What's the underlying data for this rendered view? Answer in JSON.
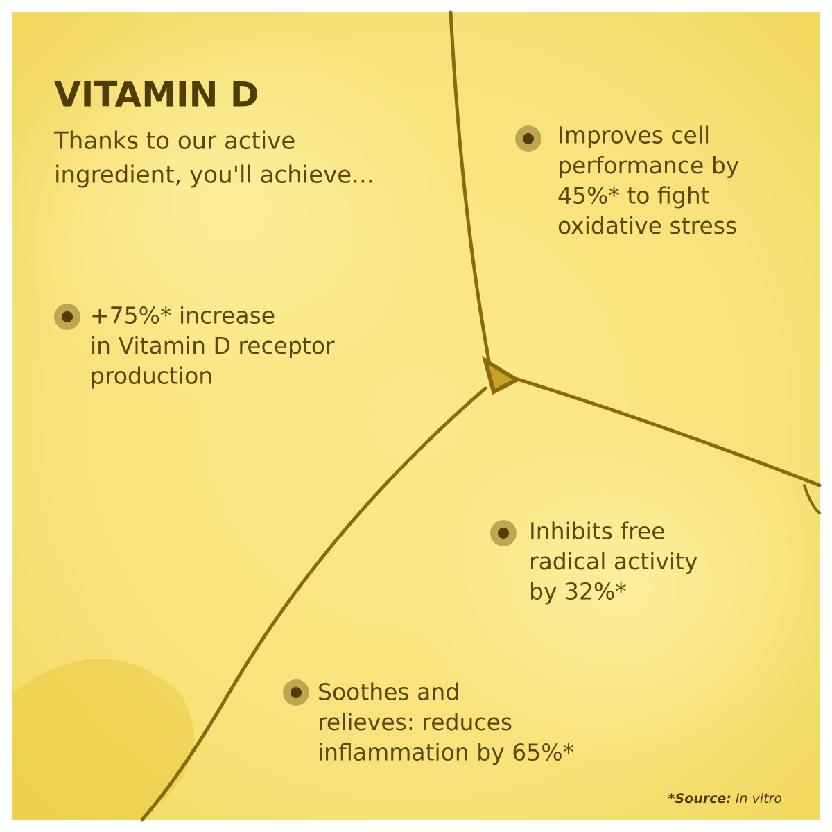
{
  "title": "VITAMIN D",
  "subtitle": [
    "Thanks to our active",
    "ingredient, you'll achieve..."
  ],
  "benefits": [
    {
      "lines": [
        "Improves cell",
        "performance by",
        "45%* to fight",
        "oxidative stress"
      ]
    },
    {
      "lines": [
        "+75%* increase",
        "in Vitamin D receptor",
        "production"
      ]
    },
    {
      "lines": [
        "Inhibits free",
        "radical activity",
        "by 32%*"
      ]
    },
    {
      "lines": [
        "Soothes and",
        "relieves: reduces",
        "inflammation by 65%*"
      ]
    }
  ],
  "source": {
    "label": "*Source:",
    "text": "In vitro"
  }
}
